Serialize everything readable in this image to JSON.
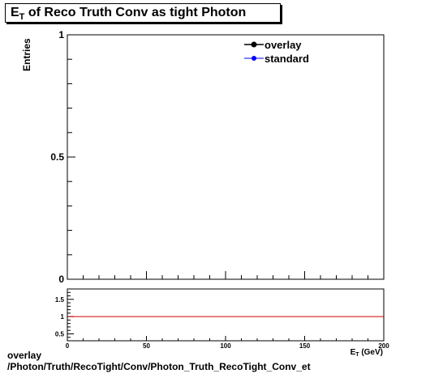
{
  "title": {
    "main": "E",
    "sub": "T",
    "rest": " of Reco Truth Conv as tight Photon"
  },
  "caption": {
    "line1": "overlay",
    "line2": "/Photon/Truth/RecoTight/Conv/Photon_Truth_RecoTight_Conv_et"
  },
  "colors": {
    "overlay": "#000000",
    "standard": "#0000ff",
    "ratio_line": "#cc0000"
  },
  "chart_data": [
    {
      "type": "line",
      "ylabel": "Entries",
      "ylim": [
        0,
        1
      ],
      "xlim": [
        0,
        200
      ],
      "y_ticks": [
        "0",
        "0.5",
        "1"
      ],
      "series": [
        {
          "name": "overlay",
          "marker": "circle",
          "values": []
        },
        {
          "name": "standard",
          "marker": "circle",
          "values": []
        }
      ],
      "legend": "top-right"
    },
    {
      "type": "line",
      "xlabel": "E_T (GeV)",
      "xlim": [
        0,
        200
      ],
      "ylim": [
        0.3,
        1.8
      ],
      "x_ticks": [
        "0",
        "50",
        "100",
        "150",
        "200"
      ],
      "y_ticks": [
        "0.5",
        "1",
        "1.5"
      ],
      "reference_line": 1,
      "series": []
    }
  ]
}
